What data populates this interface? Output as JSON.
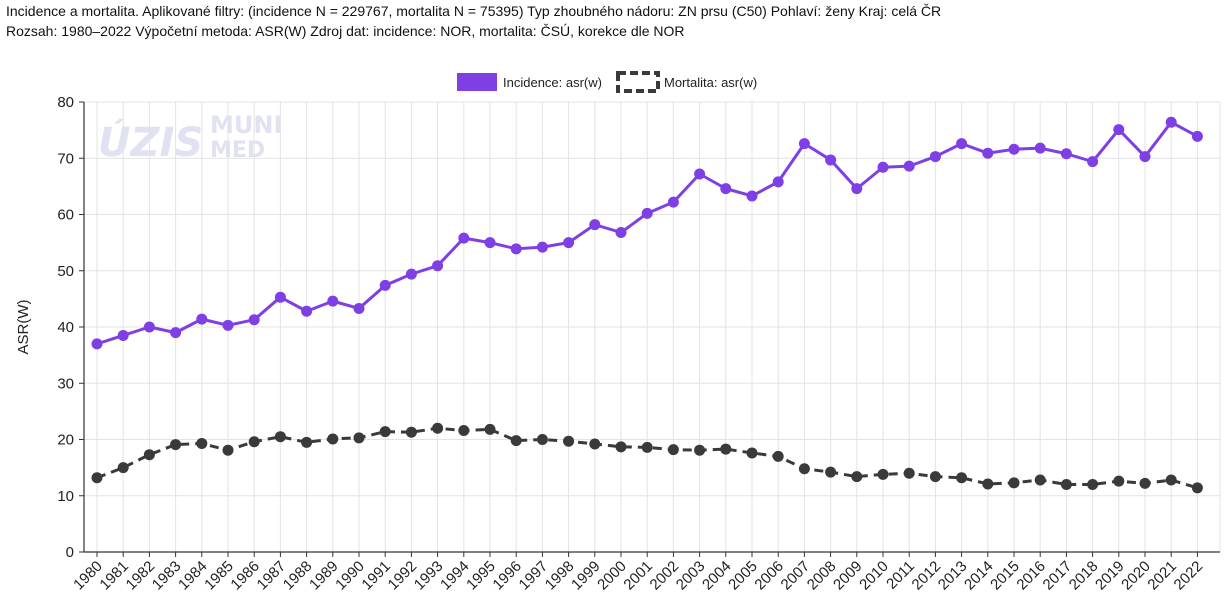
{
  "header": {
    "line1": "Incidence a mortalita. Aplikované filtry: (incidence N = 229767, mortalita N = 75395) Typ zhoubného nádoru: ZN prsu (C50) Pohlaví: ženy Kraj: celá ČR",
    "line2": "Rozsah: 1980–2022 Výpočetní metoda: ASR(W) Zdroj dat: incidence: NOR, mortalita: ČSÚ, korekce dle NOR"
  },
  "watermark": {
    "logo1": "ÚZIS",
    "logo2_top": "MUNI",
    "logo2_bottom": "MED"
  },
  "colors": {
    "incidence": "#7e3fe4",
    "mortalita": "#3a3a3a",
    "grid": "#e3e3e3"
  },
  "chart_data": {
    "type": "line",
    "title": "",
    "xlabel": "",
    "ylabel": "ASR(W)",
    "ylim": [
      0,
      80
    ],
    "yticks": [
      0,
      10,
      20,
      30,
      40,
      50,
      60,
      70,
      80
    ],
    "grid": true,
    "legend_position": "top-center",
    "categories": [
      "1980",
      "1981",
      "1982",
      "1983",
      "1984",
      "1985",
      "1986",
      "1987",
      "1988",
      "1989",
      "1990",
      "1991",
      "1992",
      "1993",
      "1994",
      "1995",
      "1996",
      "1997",
      "1998",
      "1999",
      "2000",
      "2001",
      "2002",
      "2003",
      "2004",
      "2005",
      "2006",
      "2007",
      "2008",
      "2009",
      "2010",
      "2011",
      "2012",
      "2013",
      "2014",
      "2015",
      "2016",
      "2017",
      "2018",
      "2019",
      "2020",
      "2021",
      "2022"
    ],
    "series": [
      {
        "name": "Incidence: asr(w)",
        "style": "solid",
        "values": [
          37.0,
          38.5,
          40.0,
          39.0,
          41.4,
          40.3,
          41.3,
          45.3,
          42.8,
          44.6,
          43.3,
          47.4,
          49.4,
          50.9,
          55.8,
          55.0,
          53.9,
          54.2,
          55.0,
          58.2,
          56.8,
          60.2,
          62.2,
          67.2,
          64.6,
          63.3,
          65.8,
          72.6,
          69.7,
          64.6,
          68.4,
          68.6,
          70.3,
          72.6,
          70.9,
          71.6,
          71.8,
          70.8,
          69.4,
          75.1,
          70.3,
          76.4,
          73.9
        ]
      },
      {
        "name": "Mortalita: asr(w)",
        "style": "dashed",
        "values": [
          13.2,
          15.0,
          17.3,
          19.1,
          19.3,
          18.1,
          19.6,
          20.5,
          19.5,
          20.1,
          20.3,
          21.4,
          21.3,
          22.0,
          21.6,
          21.8,
          19.8,
          20.0,
          19.7,
          19.2,
          18.7,
          18.6,
          18.2,
          18.1,
          18.3,
          17.6,
          17.0,
          14.8,
          14.2,
          13.4,
          13.8,
          14.0,
          13.4,
          13.2,
          12.1,
          12.3,
          12.8,
          12.0,
          12.0,
          12.6,
          12.2,
          12.8,
          11.4
        ]
      }
    ]
  }
}
